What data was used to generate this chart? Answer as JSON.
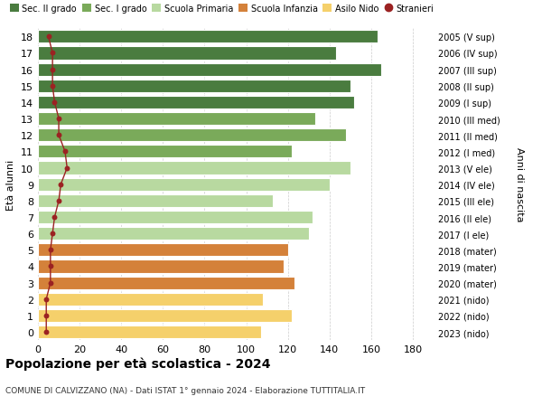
{
  "ages": [
    18,
    17,
    16,
    15,
    14,
    13,
    12,
    11,
    10,
    9,
    8,
    7,
    6,
    5,
    4,
    3,
    2,
    1,
    0
  ],
  "values": [
    163,
    143,
    165,
    150,
    152,
    133,
    148,
    122,
    150,
    140,
    113,
    132,
    130,
    120,
    118,
    123,
    108,
    122,
    107
  ],
  "stranieri": [
    5,
    7,
    7,
    7,
    8,
    10,
    10,
    13,
    14,
    11,
    10,
    8,
    7,
    6,
    6,
    6,
    4,
    4,
    4
  ],
  "categories": [
    "Sec. II grado",
    "Sec. I grado",
    "Scuola Primaria",
    "Scuola Infanzia",
    "Asilo Nido"
  ],
  "bar_colors": {
    "Sec. II grado": "#4a7c3f",
    "Sec. I grado": "#7aaa5a",
    "Scuola Primaria": "#b8d9a0",
    "Scuola Infanzia": "#d4813a",
    "Asilo Nido": "#f5d06b"
  },
  "age_category": {
    "18": "Sec. II grado",
    "17": "Sec. II grado",
    "16": "Sec. II grado",
    "15": "Sec. II grado",
    "14": "Sec. II grado",
    "13": "Sec. I grado",
    "12": "Sec. I grado",
    "11": "Sec. I grado",
    "10": "Scuola Primaria",
    "9": "Scuola Primaria",
    "8": "Scuola Primaria",
    "7": "Scuola Primaria",
    "6": "Scuola Primaria",
    "5": "Scuola Infanzia",
    "4": "Scuola Infanzia",
    "3": "Scuola Infanzia",
    "2": "Asilo Nido",
    "1": "Asilo Nido",
    "0": "Asilo Nido"
  },
  "right_labels_by_age": {
    "18": "2005 (V sup)",
    "17": "2006 (IV sup)",
    "16": "2007 (III sup)",
    "15": "2008 (II sup)",
    "14": "2009 (I sup)",
    "13": "2010 (III med)",
    "12": "2011 (II med)",
    "11": "2012 (I med)",
    "10": "2013 (V ele)",
    "9": "2014 (IV ele)",
    "8": "2015 (III ele)",
    "7": "2016 (II ele)",
    "6": "2017 (I ele)",
    "5": "2018 (mater)",
    "4": "2019 (mater)",
    "3": "2020 (mater)",
    "2": "2021 (nido)",
    "1": "2022 (nido)",
    "0": "2023 (nido)"
  },
  "ylabel": "Età alunni",
  "right_ylabel": "Anni di nascita",
  "title": "Popolazione per età scolastica - 2024",
  "subtitle": "COMUNE DI CALVIZZANO (NA) - Dati ISTAT 1° gennaio 2024 - Elaborazione TUTTITALIA.IT",
  "xlim": [
    0,
    190
  ],
  "xticks": [
    0,
    20,
    40,
    60,
    80,
    100,
    120,
    140,
    160,
    180
  ],
  "background_color": "#ffffff",
  "stranieri_color": "#9b2222",
  "stranieri_label": "Stranieri"
}
